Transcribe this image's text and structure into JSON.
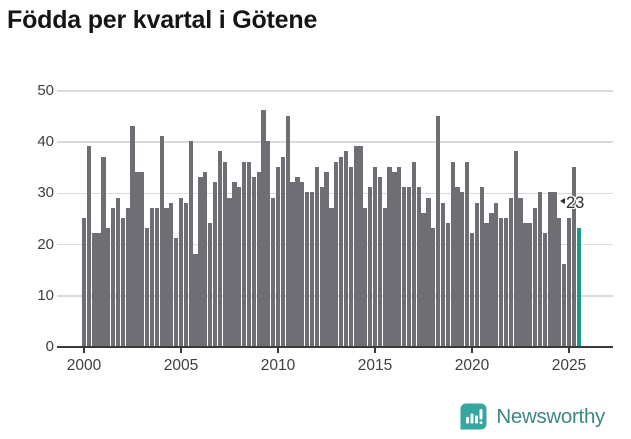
{
  "title": "Födda per kvartal i Götene",
  "chart_data": {
    "type": "bar",
    "title": "Födda per kvartal i Götene",
    "x_range": [
      "2000Q1",
      "2025Q3"
    ],
    "x_tick_labels": [
      "2000",
      "2005",
      "2010",
      "2015",
      "2020",
      "2025"
    ],
    "y_ticks": [
      0,
      10,
      20,
      30,
      40,
      50
    ],
    "ylim": [
      0,
      50
    ],
    "grid": true,
    "bar_color": "#6e6e74",
    "highlight_color": "#169b8f",
    "highlight_index": 102,
    "highlight_value_label": "23",
    "values": [
      25,
      39,
      22,
      22,
      37,
      23,
      27,
      29,
      25,
      27,
      43,
      34,
      34,
      23,
      27,
      27,
      41,
      27,
      28,
      21,
      29,
      28,
      40,
      18,
      33,
      34,
      24,
      32,
      38,
      36,
      29,
      32,
      31,
      36,
      36,
      33,
      34,
      46,
      40,
      29,
      35,
      37,
      45,
      32,
      33,
      32,
      30,
      30,
      35,
      31,
      34,
      27,
      36,
      37,
      38,
      35,
      39,
      39,
      27,
      31,
      35,
      33,
      27,
      35,
      34,
      35,
      31,
      31,
      36,
      31,
      26,
      29,
      23,
      45,
      28,
      24,
      36,
      31,
      30,
      36,
      22,
      28,
      31,
      24,
      26,
      28,
      25,
      25,
      29,
      38,
      29,
      24,
      24,
      27,
      30,
      22,
      30,
      30,
      25,
      16,
      25,
      35,
      23
    ]
  },
  "annotation": {
    "label": "23"
  },
  "branding": {
    "logo_text": "Newsworthy",
    "logo_icon": "newsworthy-chart-bubble-icon"
  }
}
